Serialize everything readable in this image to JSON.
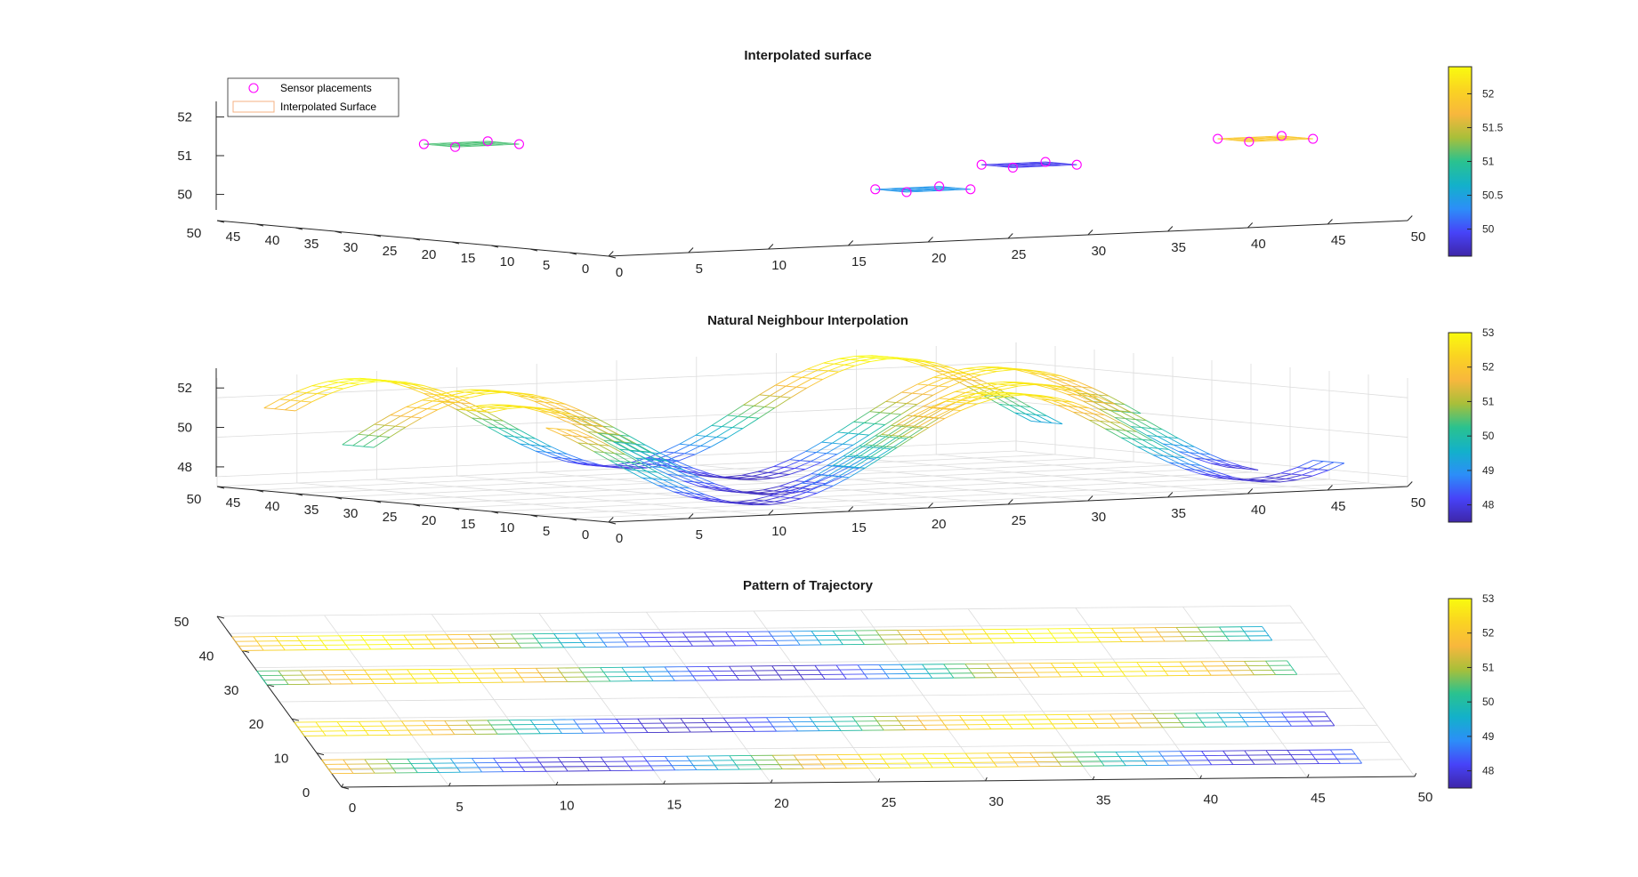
{
  "figure": {
    "background": "#ffffff",
    "colormap": "parula",
    "colormap_stops": [
      "#3e26a8",
      "#4743f8",
      "#2c8ef8",
      "#13b1ca",
      "#2ac28f",
      "#a8bf3a",
      "#f8b73d",
      "#fad322",
      "#f9fb0e"
    ]
  },
  "chart_data": [
    {
      "type": "surface",
      "title": "Interpolated surface",
      "xlabel": "",
      "ylabel": "",
      "zlabel": "",
      "xlim": [
        0,
        50
      ],
      "ylim": [
        0,
        50
      ],
      "zlim": [
        49.6,
        52.4
      ],
      "x_ticks": [
        "0",
        "5",
        "10",
        "15",
        "20",
        "25",
        "30",
        "35",
        "40",
        "45",
        "50"
      ],
      "y_ticks": [
        "0",
        "5",
        "10",
        "15",
        "20",
        "25",
        "30",
        "35",
        "40",
        "45",
        "50"
      ],
      "z_ticks": [
        "50",
        "51",
        "52"
      ],
      "colorbar": {
        "min": 49.6,
        "max": 52.4,
        "ticks": [
          "50",
          "50.5",
          "51",
          "51.5",
          "52"
        ]
      },
      "grid": false,
      "legend": {
        "position": "top-left",
        "entries": [
          {
            "label": "Sensor placements",
            "marker": "circle",
            "color": "#ff00ff"
          },
          {
            "label": "Interpolated Surface",
            "marker": "line",
            "color": "#f4b183"
          }
        ]
      },
      "series": [
        {
          "name": "Sensor placements",
          "kind": "points",
          "points": [
            [
              40,
              30,
              50.6
            ],
            [
              44,
              30,
              50.6
            ],
            [
              40,
              34,
              50.6
            ],
            [
              44,
              34,
              50.6
            ],
            [
              10,
              40,
              51.5
            ],
            [
              14,
              40,
              51.5
            ],
            [
              10,
              44,
              51.5
            ],
            [
              14,
              44,
              51.5
            ],
            [
              26,
              15,
              50.5
            ],
            [
              30,
              15,
              50.5
            ],
            [
              26,
              19,
              50.5
            ],
            [
              30,
              19,
              50.5
            ],
            [
              44,
              8,
              51.6
            ],
            [
              48,
              8,
              51.6
            ],
            [
              44,
              12,
              51.6
            ],
            [
              48,
              12,
              51.6
            ]
          ]
        }
      ],
      "patches": [
        {
          "x": [
            40,
            44
          ],
          "y": [
            30,
            34
          ],
          "z": 50.6,
          "color_value": 49.9
        },
        {
          "x": [
            10,
            14
          ],
          "y": [
            40,
            44
          ],
          "z": 51.5,
          "color_value": 51.1
        },
        {
          "x": [
            26,
            30
          ],
          "y": [
            15,
            19
          ],
          "z": 50.5,
          "color_value": 50.4
        },
        {
          "x": [
            44,
            48
          ],
          "y": [
            8,
            12
          ],
          "z": 51.6,
          "color_value": 51.9
        }
      ]
    },
    {
      "type": "surface",
      "title": "Natural Neighbour Interpolation",
      "xlabel": "",
      "ylabel": "",
      "zlabel": "",
      "xlim": [
        0,
        50
      ],
      "ylim": [
        0,
        50
      ],
      "zlim": [
        47.5,
        53
      ],
      "x_ticks": [
        "0",
        "5",
        "10",
        "15",
        "20",
        "25",
        "30",
        "35",
        "40",
        "45",
        "50"
      ],
      "y_ticks": [
        "0",
        "5",
        "10",
        "15",
        "20",
        "25",
        "30",
        "35",
        "40",
        "45",
        "50"
      ],
      "z_ticks": [
        "48",
        "50",
        "52"
      ],
      "colorbar": {
        "min": 47.5,
        "max": 53,
        "ticks": [
          "48",
          "49",
          "50",
          "51",
          "52",
          "53"
        ]
      },
      "grid": true,
      "strips": [
        {
          "y": [
            40,
            44
          ],
          "x": [
            0,
            48
          ],
          "amplitude": 2.5,
          "cycles": 1.5,
          "phase": 0.5,
          "center": 50.5
        },
        {
          "y": [
            30,
            34
          ],
          "x": [
            0,
            48
          ],
          "amplitude": 2.5,
          "cycles": 1.5,
          "phase": 0.0,
          "center": 50.2
        },
        {
          "y": [
            15,
            19
          ],
          "x": [
            0,
            48
          ],
          "amplitude": 2.5,
          "cycles": 1.5,
          "phase": 1.2,
          "center": 50.2
        },
        {
          "y": [
            4,
            8
          ],
          "x": [
            0,
            48
          ],
          "amplitude": 2.5,
          "cycles": 1.5,
          "phase": 2.4,
          "center": 50.3
        }
      ]
    },
    {
      "type": "surface",
      "title": "Pattern of Trajectory",
      "xlabel": "",
      "ylabel": "",
      "zlabel": "",
      "xlim": [
        0,
        50
      ],
      "ylim": [
        0,
        50
      ],
      "x_ticks": [
        "0",
        "5",
        "10",
        "15",
        "20",
        "25",
        "30",
        "35",
        "40",
        "45",
        "50"
      ],
      "y_ticks": [
        "0",
        "10",
        "20",
        "30",
        "40",
        "50"
      ],
      "colorbar": {
        "min": 47.5,
        "max": 53,
        "ticks": [
          "48",
          "49",
          "50",
          "51",
          "52",
          "53"
        ]
      },
      "grid": true,
      "strips": [
        {
          "y": [
            40,
            44
          ],
          "x": [
            0,
            48
          ],
          "amplitude": 2.5,
          "cycles": 1.5,
          "phase": 0.5,
          "center": 50.5
        },
        {
          "y": [
            30,
            34
          ],
          "x": [
            0,
            48
          ],
          "amplitude": 2.5,
          "cycles": 1.5,
          "phase": 0.0,
          "center": 50.2
        },
        {
          "y": [
            15,
            19
          ],
          "x": [
            0,
            48
          ],
          "amplitude": 2.5,
          "cycles": 1.5,
          "phase": 1.2,
          "center": 50.2
        },
        {
          "y": [
            4,
            8
          ],
          "x": [
            0,
            48
          ],
          "amplitude": 2.5,
          "cycles": 1.5,
          "phase": 2.4,
          "center": 50.3
        }
      ]
    }
  ]
}
